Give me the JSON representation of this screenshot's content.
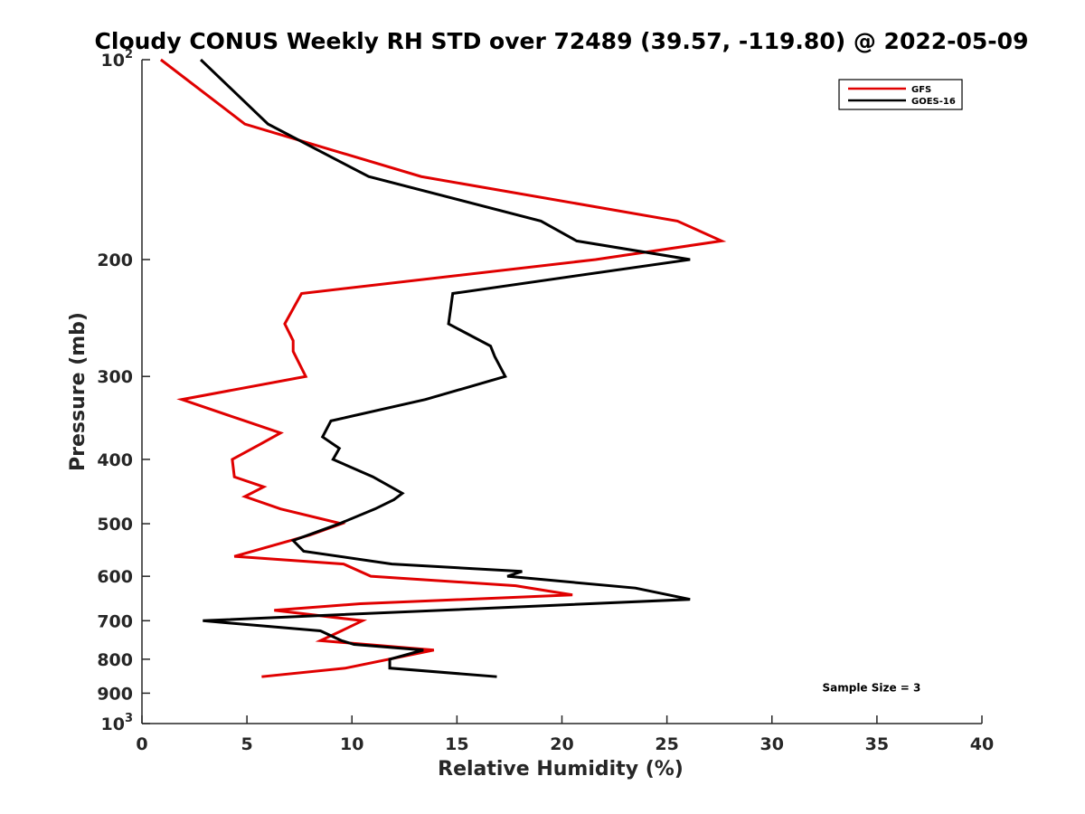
{
  "chart_data": {
    "type": "line",
    "title": "Cloudy CONUS Weekly RH STD over 72489 (39.57, -119.80) @ 2022-05-09",
    "xlabel": "Relative Humidity (%)",
    "ylabel": "Pressure (mb)",
    "xlim": [
      0,
      40
    ],
    "ylim": [
      100,
      1000
    ],
    "y_scale": "log",
    "y_reversed": true,
    "grid": false,
    "legend_position": "top-right",
    "x_ticks": [
      0,
      5,
      10,
      15,
      20,
      25,
      30,
      35,
      40
    ],
    "y_ticks": [
      {
        "value": 100,
        "base": "10",
        "exp": "2"
      },
      {
        "value": 200,
        "label": "200"
      },
      {
        "value": 300,
        "label": "300"
      },
      {
        "value": 400,
        "label": "400"
      },
      {
        "value": 500,
        "label": "500"
      },
      {
        "value": 600,
        "label": "600"
      },
      {
        "value": 700,
        "label": "700"
      },
      {
        "value": 800,
        "label": "800"
      },
      {
        "value": 900,
        "label": "900"
      },
      {
        "value": 1000,
        "base": "10",
        "exp": "3"
      }
    ],
    "series": [
      {
        "name": "GFS",
        "color": "#e00000",
        "points": [
          [
            0.9,
            100
          ],
          [
            4.9,
            125
          ],
          [
            13.3,
            150
          ],
          [
            25.5,
            175
          ],
          [
            27.6,
            187.5
          ],
          [
            21.6,
            200
          ],
          [
            7.6,
            225
          ],
          [
            6.8,
            250
          ],
          [
            7.2,
            265
          ],
          [
            7.2,
            275
          ],
          [
            7.8,
            300
          ],
          [
            1.9,
            325
          ],
          [
            4.9,
            350
          ],
          [
            6.6,
            365
          ],
          [
            5.6,
            380
          ],
          [
            4.3,
            400
          ],
          [
            4.4,
            425
          ],
          [
            5.8,
            440
          ],
          [
            4.9,
            455
          ],
          [
            6.6,
            475
          ],
          [
            9.5,
            500
          ],
          [
            8.0,
            520
          ],
          [
            4.4,
            560
          ],
          [
            9.6,
            575
          ],
          [
            10.9,
            600
          ],
          [
            17.8,
            620
          ],
          [
            20.5,
            640
          ],
          [
            10.4,
            660
          ],
          [
            6.3,
            675
          ],
          [
            10.5,
            700
          ],
          [
            9.5,
            725
          ],
          [
            8.5,
            750
          ],
          [
            13.9,
            775
          ],
          [
            9.7,
            825
          ],
          [
            5.7,
            850
          ]
        ]
      },
      {
        "name": "GOES-16",
        "color": "#000000",
        "points": [
          [
            2.8,
            100
          ],
          [
            6.0,
            125
          ],
          [
            10.8,
            150
          ],
          [
            19.0,
            175
          ],
          [
            20.7,
            187.5
          ],
          [
            26.1,
            200
          ],
          [
            14.8,
            225
          ],
          [
            14.6,
            250
          ],
          [
            16.6,
            270
          ],
          [
            16.8,
            280
          ],
          [
            17.3,
            300
          ],
          [
            13.5,
            325
          ],
          [
            9.0,
            350
          ],
          [
            8.6,
            370
          ],
          [
            9.4,
            385
          ],
          [
            9.1,
            400
          ],
          [
            11.0,
            425
          ],
          [
            12.4,
            450
          ],
          [
            12.0,
            460
          ],
          [
            11.1,
            475
          ],
          [
            9.4,
            500
          ],
          [
            7.2,
            530
          ],
          [
            7.7,
            550
          ],
          [
            11.9,
            575
          ],
          [
            18.1,
            590
          ],
          [
            17.4,
            600
          ],
          [
            23.5,
            625
          ],
          [
            26.1,
            650
          ],
          [
            2.9,
            700
          ],
          [
            8.5,
            725
          ],
          [
            9.5,
            750
          ],
          [
            10.1,
            760
          ],
          [
            13.4,
            775
          ],
          [
            11.8,
            800
          ],
          [
            11.8,
            825
          ],
          [
            16.9,
            850
          ]
        ]
      }
    ],
    "annotations": [
      {
        "text": "Sample Size = 3",
        "x": 32.4,
        "y": 900
      }
    ]
  }
}
